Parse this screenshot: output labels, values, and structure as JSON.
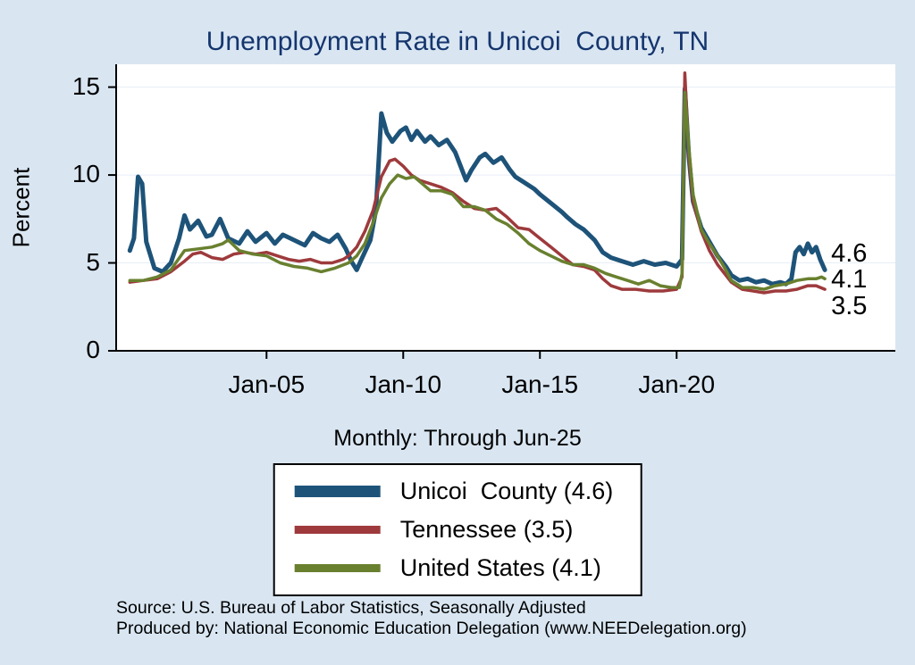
{
  "title": "Unemployment Rate in Unicoi  County, TN",
  "subtitle": "Monthly: Through Jun-25",
  "ylabel": "Percent",
  "notes": [
    "Source: U.S. Bureau of Labor Statistics, Seasonally Adjusted",
    "Produced by: National Economic Education Delegation (www.NEEDelegation.org)"
  ],
  "colors": {
    "background": "#d9e6f2",
    "title": "#15356e",
    "axis": "#000000",
    "gridline": "#e7eef6",
    "unicoi_blue": "#1e5379",
    "tennessee_red": "#9e3a3c",
    "us_green": "#69802f"
  },
  "chart_data": {
    "type": "line",
    "title": "Unemployment Rate in Unicoi  County, TN",
    "subtitle": "Monthly: Through Jun-25",
    "xlabel": "",
    "ylabel": "Percent",
    "xlim": [
      1999.5,
      2028.0
    ],
    "ylim": [
      0,
      16.3
    ],
    "xticks": [
      {
        "v": 2005,
        "label": "Jan-05"
      },
      {
        "v": 2010,
        "label": "Jan-10"
      },
      {
        "v": 2015,
        "label": "Jan-15"
      },
      {
        "v": 2020,
        "label": "Jan-20"
      }
    ],
    "yticks": [
      {
        "v": 0,
        "label": "0"
      },
      {
        "v": 5,
        "label": "5"
      },
      {
        "v": 10,
        "label": "10"
      },
      {
        "v": 15,
        "label": "15"
      }
    ],
    "gridlines": [
      5,
      10,
      15
    ],
    "legend_position": "bottom-center",
    "series": [
      {
        "name": "unicoi-county",
        "legend_label": "Unicoi  County (4.6)",
        "color": "#1e5379",
        "width": 5,
        "points": [
          [
            2000.0,
            5.7
          ],
          [
            2000.15,
            6.4
          ],
          [
            2000.3,
            9.9
          ],
          [
            2000.45,
            9.5
          ],
          [
            2000.6,
            6.2
          ],
          [
            2000.9,
            4.7
          ],
          [
            2001.2,
            4.5
          ],
          [
            2001.5,
            5.0
          ],
          [
            2001.8,
            6.4
          ],
          [
            2002.0,
            7.7
          ],
          [
            2002.2,
            6.9
          ],
          [
            2002.5,
            7.4
          ],
          [
            2002.8,
            6.5
          ],
          [
            2003.0,
            6.6
          ],
          [
            2003.3,
            7.5
          ],
          [
            2003.6,
            6.4
          ],
          [
            2004.0,
            6.1
          ],
          [
            2004.3,
            6.8
          ],
          [
            2004.6,
            6.2
          ],
          [
            2005.0,
            6.7
          ],
          [
            2005.3,
            6.1
          ],
          [
            2005.6,
            6.6
          ],
          [
            2006.0,
            6.3
          ],
          [
            2006.4,
            6.0
          ],
          [
            2006.7,
            6.7
          ],
          [
            2007.0,
            6.4
          ],
          [
            2007.3,
            6.2
          ],
          [
            2007.6,
            6.6
          ],
          [
            2007.9,
            5.8
          ],
          [
            2008.1,
            5.1
          ],
          [
            2008.3,
            4.6
          ],
          [
            2008.5,
            5.3
          ],
          [
            2008.8,
            6.3
          ],
          [
            2009.0,
            8.0
          ],
          [
            2009.2,
            13.5
          ],
          [
            2009.4,
            12.4
          ],
          [
            2009.6,
            11.9
          ],
          [
            2009.9,
            12.5
          ],
          [
            2010.1,
            12.7
          ],
          [
            2010.3,
            12.0
          ],
          [
            2010.5,
            12.5
          ],
          [
            2010.8,
            11.9
          ],
          [
            2011.0,
            12.2
          ],
          [
            2011.3,
            11.7
          ],
          [
            2011.6,
            12.0
          ],
          [
            2011.9,
            11.3
          ],
          [
            2012.1,
            10.5
          ],
          [
            2012.3,
            9.7
          ],
          [
            2012.5,
            10.3
          ],
          [
            2012.8,
            11.0
          ],
          [
            2013.0,
            11.2
          ],
          [
            2013.3,
            10.7
          ],
          [
            2013.6,
            11.0
          ],
          [
            2013.9,
            10.3
          ],
          [
            2014.1,
            9.9
          ],
          [
            2014.4,
            9.6
          ],
          [
            2014.8,
            9.2
          ],
          [
            2015.0,
            8.9
          ],
          [
            2015.4,
            8.4
          ],
          [
            2015.8,
            7.9
          ],
          [
            2016.0,
            7.6
          ],
          [
            2016.3,
            7.2
          ],
          [
            2016.6,
            6.9
          ],
          [
            2017.0,
            6.3
          ],
          [
            2017.3,
            5.6
          ],
          [
            2017.6,
            5.3
          ],
          [
            2018.0,
            5.1
          ],
          [
            2018.4,
            4.9
          ],
          [
            2018.8,
            5.1
          ],
          [
            2019.2,
            4.9
          ],
          [
            2019.6,
            5.0
          ],
          [
            2020.0,
            4.8
          ],
          [
            2020.2,
            5.2
          ],
          [
            2020.3,
            14.9
          ],
          [
            2020.45,
            11.0
          ],
          [
            2020.6,
            8.5
          ],
          [
            2020.9,
            7.0
          ],
          [
            2021.2,
            6.2
          ],
          [
            2021.5,
            5.4
          ],
          [
            2021.8,
            4.8
          ],
          [
            2022.0,
            4.3
          ],
          [
            2022.3,
            4.0
          ],
          [
            2022.6,
            4.1
          ],
          [
            2022.9,
            3.9
          ],
          [
            2023.2,
            4.0
          ],
          [
            2023.5,
            3.8
          ],
          [
            2023.8,
            3.9
          ],
          [
            2024.0,
            3.8
          ],
          [
            2024.2,
            4.1
          ],
          [
            2024.35,
            5.6
          ],
          [
            2024.5,
            5.9
          ],
          [
            2024.65,
            5.5
          ],
          [
            2024.8,
            6.1
          ],
          [
            2024.95,
            5.6
          ],
          [
            2025.1,
            5.9
          ],
          [
            2025.25,
            5.2
          ],
          [
            2025.42,
            4.6
          ]
        ]
      },
      {
        "name": "tennessee",
        "legend_label": "Tennessee (3.5)",
        "color": "#9e3a3c",
        "width": 3.5,
        "points": [
          [
            2000.0,
            3.9
          ],
          [
            2000.5,
            4.0
          ],
          [
            2001.0,
            4.1
          ],
          [
            2001.5,
            4.5
          ],
          [
            2002.0,
            5.1
          ],
          [
            2002.3,
            5.5
          ],
          [
            2002.6,
            5.6
          ],
          [
            2003.0,
            5.3
          ],
          [
            2003.4,
            5.2
          ],
          [
            2003.8,
            5.5
          ],
          [
            2004.2,
            5.6
          ],
          [
            2004.6,
            5.5
          ],
          [
            2005.0,
            5.6
          ],
          [
            2005.4,
            5.4
          ],
          [
            2005.8,
            5.2
          ],
          [
            2006.2,
            5.1
          ],
          [
            2006.6,
            5.2
          ],
          [
            2007.0,
            5.0
          ],
          [
            2007.4,
            5.0
          ],
          [
            2007.8,
            5.2
          ],
          [
            2008.0,
            5.4
          ],
          [
            2008.3,
            5.9
          ],
          [
            2008.6,
            6.8
          ],
          [
            2008.9,
            8.0
          ],
          [
            2009.2,
            9.9
          ],
          [
            2009.5,
            10.8
          ],
          [
            2009.7,
            10.9
          ],
          [
            2010.0,
            10.5
          ],
          [
            2010.3,
            10.0
          ],
          [
            2010.6,
            9.7
          ],
          [
            2011.0,
            9.5
          ],
          [
            2011.4,
            9.3
          ],
          [
            2011.8,
            9.0
          ],
          [
            2012.2,
            8.5
          ],
          [
            2012.6,
            8.1
          ],
          [
            2013.0,
            8.0
          ],
          [
            2013.4,
            8.1
          ],
          [
            2013.8,
            7.6
          ],
          [
            2014.2,
            7.0
          ],
          [
            2014.6,
            6.9
          ],
          [
            2015.0,
            6.4
          ],
          [
            2015.4,
            5.9
          ],
          [
            2015.8,
            5.4
          ],
          [
            2016.2,
            4.9
          ],
          [
            2016.6,
            4.8
          ],
          [
            2017.0,
            4.6
          ],
          [
            2017.3,
            4.1
          ],
          [
            2017.6,
            3.7
          ],
          [
            2018.0,
            3.5
          ],
          [
            2018.5,
            3.5
          ],
          [
            2019.0,
            3.4
          ],
          [
            2019.5,
            3.4
          ],
          [
            2020.0,
            3.5
          ],
          [
            2020.2,
            4.2
          ],
          [
            2020.3,
            15.8
          ],
          [
            2020.45,
            11.0
          ],
          [
            2020.6,
            8.5
          ],
          [
            2020.9,
            6.8
          ],
          [
            2021.2,
            5.7
          ],
          [
            2021.5,
            4.9
          ],
          [
            2021.8,
            4.3
          ],
          [
            2022.0,
            3.9
          ],
          [
            2022.4,
            3.5
          ],
          [
            2022.8,
            3.4
          ],
          [
            2023.2,
            3.3
          ],
          [
            2023.6,
            3.4
          ],
          [
            2024.0,
            3.4
          ],
          [
            2024.4,
            3.5
          ],
          [
            2024.8,
            3.7
          ],
          [
            2025.1,
            3.7
          ],
          [
            2025.42,
            3.5
          ]
        ]
      },
      {
        "name": "united-states",
        "legend_label": "United States (4.1)",
        "color": "#69802f",
        "width": 3.5,
        "points": [
          [
            2000.0,
            4.0
          ],
          [
            2000.5,
            4.0
          ],
          [
            2001.0,
            4.2
          ],
          [
            2001.5,
            4.6
          ],
          [
            2002.0,
            5.7
          ],
          [
            2002.5,
            5.8
          ],
          [
            2003.0,
            5.9
          ],
          [
            2003.4,
            6.1
          ],
          [
            2003.6,
            6.3
          ],
          [
            2004.0,
            5.7
          ],
          [
            2004.5,
            5.5
          ],
          [
            2005.0,
            5.4
          ],
          [
            2005.5,
            5.0
          ],
          [
            2006.0,
            4.8
          ],
          [
            2006.5,
            4.7
          ],
          [
            2007.0,
            4.5
          ],
          [
            2007.5,
            4.7
          ],
          [
            2008.0,
            5.0
          ],
          [
            2008.3,
            5.4
          ],
          [
            2008.6,
            6.1
          ],
          [
            2008.9,
            7.3
          ],
          [
            2009.2,
            8.7
          ],
          [
            2009.5,
            9.5
          ],
          [
            2009.8,
            10.0
          ],
          [
            2010.1,
            9.8
          ],
          [
            2010.4,
            9.9
          ],
          [
            2010.7,
            9.5
          ],
          [
            2011.0,
            9.1
          ],
          [
            2011.4,
            9.1
          ],
          [
            2011.8,
            8.9
          ],
          [
            2012.2,
            8.2
          ],
          [
            2012.6,
            8.2
          ],
          [
            2013.0,
            8.0
          ],
          [
            2013.4,
            7.5
          ],
          [
            2013.8,
            7.2
          ],
          [
            2014.2,
            6.7
          ],
          [
            2014.6,
            6.1
          ],
          [
            2015.0,
            5.7
          ],
          [
            2015.4,
            5.4
          ],
          [
            2015.8,
            5.1
          ],
          [
            2016.2,
            4.9
          ],
          [
            2016.6,
            4.9
          ],
          [
            2017.0,
            4.7
          ],
          [
            2017.4,
            4.4
          ],
          [
            2017.8,
            4.2
          ],
          [
            2018.2,
            4.0
          ],
          [
            2018.6,
            3.8
          ],
          [
            2019.0,
            4.0
          ],
          [
            2019.4,
            3.7
          ],
          [
            2019.8,
            3.6
          ],
          [
            2020.1,
            3.6
          ],
          [
            2020.2,
            4.4
          ],
          [
            2020.3,
            14.7
          ],
          [
            2020.45,
            11.5
          ],
          [
            2020.6,
            8.9
          ],
          [
            2020.9,
            6.9
          ],
          [
            2021.2,
            6.1
          ],
          [
            2021.5,
            5.4
          ],
          [
            2021.8,
            4.6
          ],
          [
            2022.0,
            4.0
          ],
          [
            2022.4,
            3.6
          ],
          [
            2022.8,
            3.6
          ],
          [
            2023.2,
            3.5
          ],
          [
            2023.6,
            3.7
          ],
          [
            2024.0,
            3.8
          ],
          [
            2024.4,
            4.0
          ],
          [
            2024.8,
            4.1
          ],
          [
            2025.1,
            4.1
          ],
          [
            2025.3,
            4.2
          ],
          [
            2025.42,
            4.1
          ]
        ]
      }
    ],
    "end_labels": [
      {
        "text": "4.6",
        "y": 5.45
      },
      {
        "text": "4.1",
        "y": 3.95
      },
      {
        "text": "3.5",
        "y": 2.45
      }
    ],
    "end_label_x": 2025.65
  }
}
